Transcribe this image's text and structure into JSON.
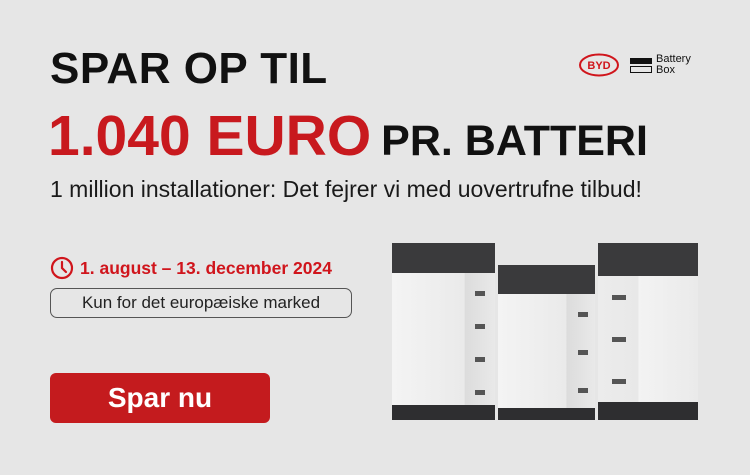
{
  "headline": {
    "line1": "SPAR OP TIL",
    "amount": "1.040 EURO",
    "per": "PR. BATTERI"
  },
  "subtitle": "1 million installationer: Det fejrer vi med uovertrufne tilbud!",
  "period": {
    "icon": "clock-icon",
    "text": "1. august – 13. december 2024"
  },
  "market_note": "Kun for det europæiske marked",
  "cta": {
    "label": "Spar nu"
  },
  "logos": {
    "brand": "BYD",
    "product": [
      "Battery",
      "Box"
    ]
  },
  "colors": {
    "accent": "#c8191e",
    "background": "#e6e6e6",
    "button": "#c41b1e"
  }
}
